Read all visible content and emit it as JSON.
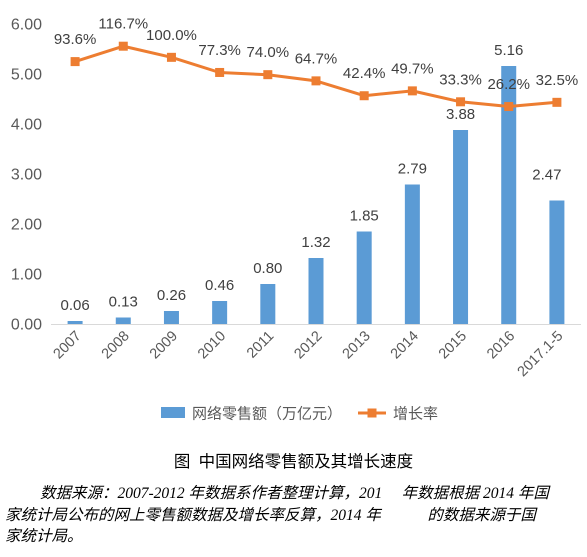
{
  "chart_data": {
    "type": "bar",
    "title": "图  中国网络零售额及其增长速度",
    "xlabel": "",
    "ylabel": "",
    "categories": [
      "2007",
      "2008",
      "2009",
      "2010",
      "2011",
      "2012",
      "2013",
      "2014",
      "2015",
      "2016",
      "2017.1-5"
    ],
    "series": [
      {
        "name": "网络零售额（万亿元）",
        "type": "bar",
        "secondary_axis": false,
        "color": "#5B9BD5",
        "values": [
          0.06,
          0.13,
          0.26,
          0.46,
          0.8,
          1.32,
          1.85,
          2.79,
          3.88,
          5.16,
          2.47
        ],
        "data_labels": [
          "0.06",
          "0.13",
          "0.26",
          "0.46",
          "0.80",
          "1.32",
          "1.85",
          "2.79",
          "3.88",
          "5.16",
          "2.47"
        ]
      },
      {
        "name": "增长率",
        "type": "line",
        "secondary_axis": true,
        "color": "#ED7D31",
        "values": [
          93.6,
          116.7,
          100.0,
          77.3,
          74.0,
          64.7,
          42.4,
          49.7,
          33.3,
          26.2,
          32.5
        ],
        "data_labels": [
          "93.6%",
          "116.7%",
          "100.0%",
          "77.3%",
          "74.0%",
          "64.7%",
          "42.4%",
          "49.7%",
          "33.3%",
          "26.2%",
          "32.5%"
        ]
      }
    ],
    "ylim": [
      0,
      6
    ],
    "yticks": [
      "0.00",
      "1.00",
      "2.00",
      "3.00",
      "4.00",
      "5.00",
      "6.00"
    ],
    "y2lim": [
      -300,
      150
    ],
    "y2_axis_visible": false,
    "grid": false,
    "legend": "bottom"
  },
  "source_note": {
    "lines": [
      "数据来源：2007-2012 年数据系作者整理计算，201　 年数据根据 2014 年国",
      "家统计局公布的网上零售额数据及增长率反算，2014 年　　　的数据来源于国",
      "家统计局。"
    ]
  }
}
